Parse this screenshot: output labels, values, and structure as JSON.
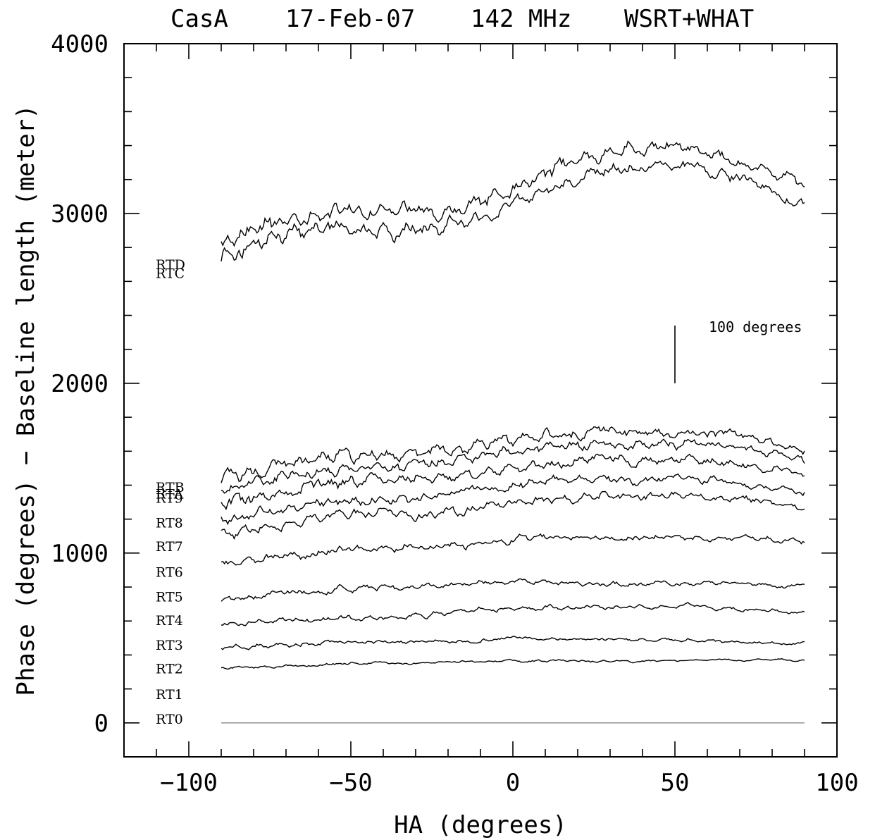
{
  "title": {
    "source": "CasA",
    "date": "17-Feb-07",
    "frequency": "142 MHz",
    "instrument": "WSRT+WHAT"
  },
  "chart_data": {
    "type": "line",
    "xlabel": "HA (degrees)",
    "ylabel": "Phase (degrees) − Baseline length (meter)",
    "xlim": [
      -120,
      100
    ],
    "ylim": [
      -200,
      4000
    ],
    "x_ticks": [
      -100,
      -50,
      0,
      50,
      100
    ],
    "x_tick_labels": [
      "−100",
      "−50",
      "0",
      "50",
      "100"
    ],
    "y_ticks": [
      0,
      1000,
      2000,
      3000,
      4000
    ],
    "y_tick_labels": [
      "0",
      "1000",
      "2000",
      "3000",
      "4000"
    ],
    "x_range_of_traces": [
      -90,
      90
    ],
    "scale_bar": {
      "label": "100 degrees",
      "x": 50,
      "y_from": 2000,
      "y_to": 2340
    },
    "series": [
      {
        "name": "RT0",
        "label_y": 25,
        "start": 0,
        "end": 0,
        "bumps": [],
        "amp": 0
      },
      {
        "name": "RT1",
        "label_y": 170,
        "start": null,
        "end": null,
        "bumps": [],
        "amp": 0
      },
      {
        "name": "RT2",
        "label_y": 320,
        "start": 320,
        "end": 360,
        "bumps": [
          [
            -50,
            15
          ],
          [
            0,
            20
          ],
          [
            60,
            15
          ]
        ],
        "amp": 8
      },
      {
        "name": "RT3",
        "label_y": 460,
        "start": 430,
        "end": 460,
        "bumps": [
          [
            -55,
            30
          ],
          [
            0,
            40
          ],
          [
            45,
            30
          ]
        ],
        "amp": 12
      },
      {
        "name": "RT4",
        "label_y": 605,
        "start": 560,
        "end": 630,
        "bumps": [
          [
            -60,
            40
          ],
          [
            0,
            70
          ],
          [
            50,
            60
          ]
        ],
        "amp": 16
      },
      {
        "name": "RT5",
        "label_y": 745,
        "start": 700,
        "end": 770,
        "bumps": [
          [
            -55,
            60
          ],
          [
            0,
            90
          ],
          [
            60,
            60
          ]
        ],
        "amp": 18
      },
      {
        "name": "RT6",
        "label_y": 890,
        "start": 920,
        "end": 1010,
        "bumps": [
          [
            -50,
            70
          ],
          [
            10,
            110
          ],
          [
            65,
            80
          ]
        ],
        "amp": 22
      },
      {
        "name": "RT7",
        "label_y": 1040,
        "start": 1080,
        "end": 1200,
        "bumps": [
          [
            -50,
            100
          ],
          [
            10,
            150
          ],
          [
            60,
            130
          ]
        ],
        "amp": 28
      },
      {
        "name": "RT8",
        "label_y": 1180,
        "start": 1170,
        "end": 1290,
        "bumps": [
          [
            -50,
            110
          ],
          [
            10,
            160
          ],
          [
            60,
            140
          ]
        ],
        "amp": 30
      },
      {
        "name": "RT9",
        "label_y": 1325,
        "start": 1260,
        "end": 1390,
        "bumps": [
          [
            -50,
            120
          ],
          [
            10,
            170
          ],
          [
            60,
            150
          ]
        ],
        "amp": 32
      },
      {
        "name": "RTA",
        "label_y": 1350,
        "start": 1330,
        "end": 1470,
        "bumps": [
          [
            -50,
            130
          ],
          [
            10,
            190
          ],
          [
            60,
            160
          ]
        ],
        "amp": 34
      },
      {
        "name": "RTB",
        "label_y": 1390,
        "start": 1400,
        "end": 1520,
        "bumps": [
          [
            -50,
            140
          ],
          [
            10,
            200
          ],
          [
            60,
            180
          ]
        ],
        "amp": 35
      },
      {
        "name": "RTC",
        "label_y": 2650,
        "start": 2680,
        "end": 2940,
        "bumps": [
          [
            -55,
            180
          ],
          [
            20,
            290
          ],
          [
            60,
            280
          ]
        ],
        "amp": 45
      },
      {
        "name": "RTD",
        "label_y": 2700,
        "start": 2760,
        "end": 3020,
        "bumps": [
          [
            -55,
            200
          ],
          [
            20,
            310
          ],
          [
            60,
            290
          ]
        ],
        "amp": 48
      }
    ]
  }
}
